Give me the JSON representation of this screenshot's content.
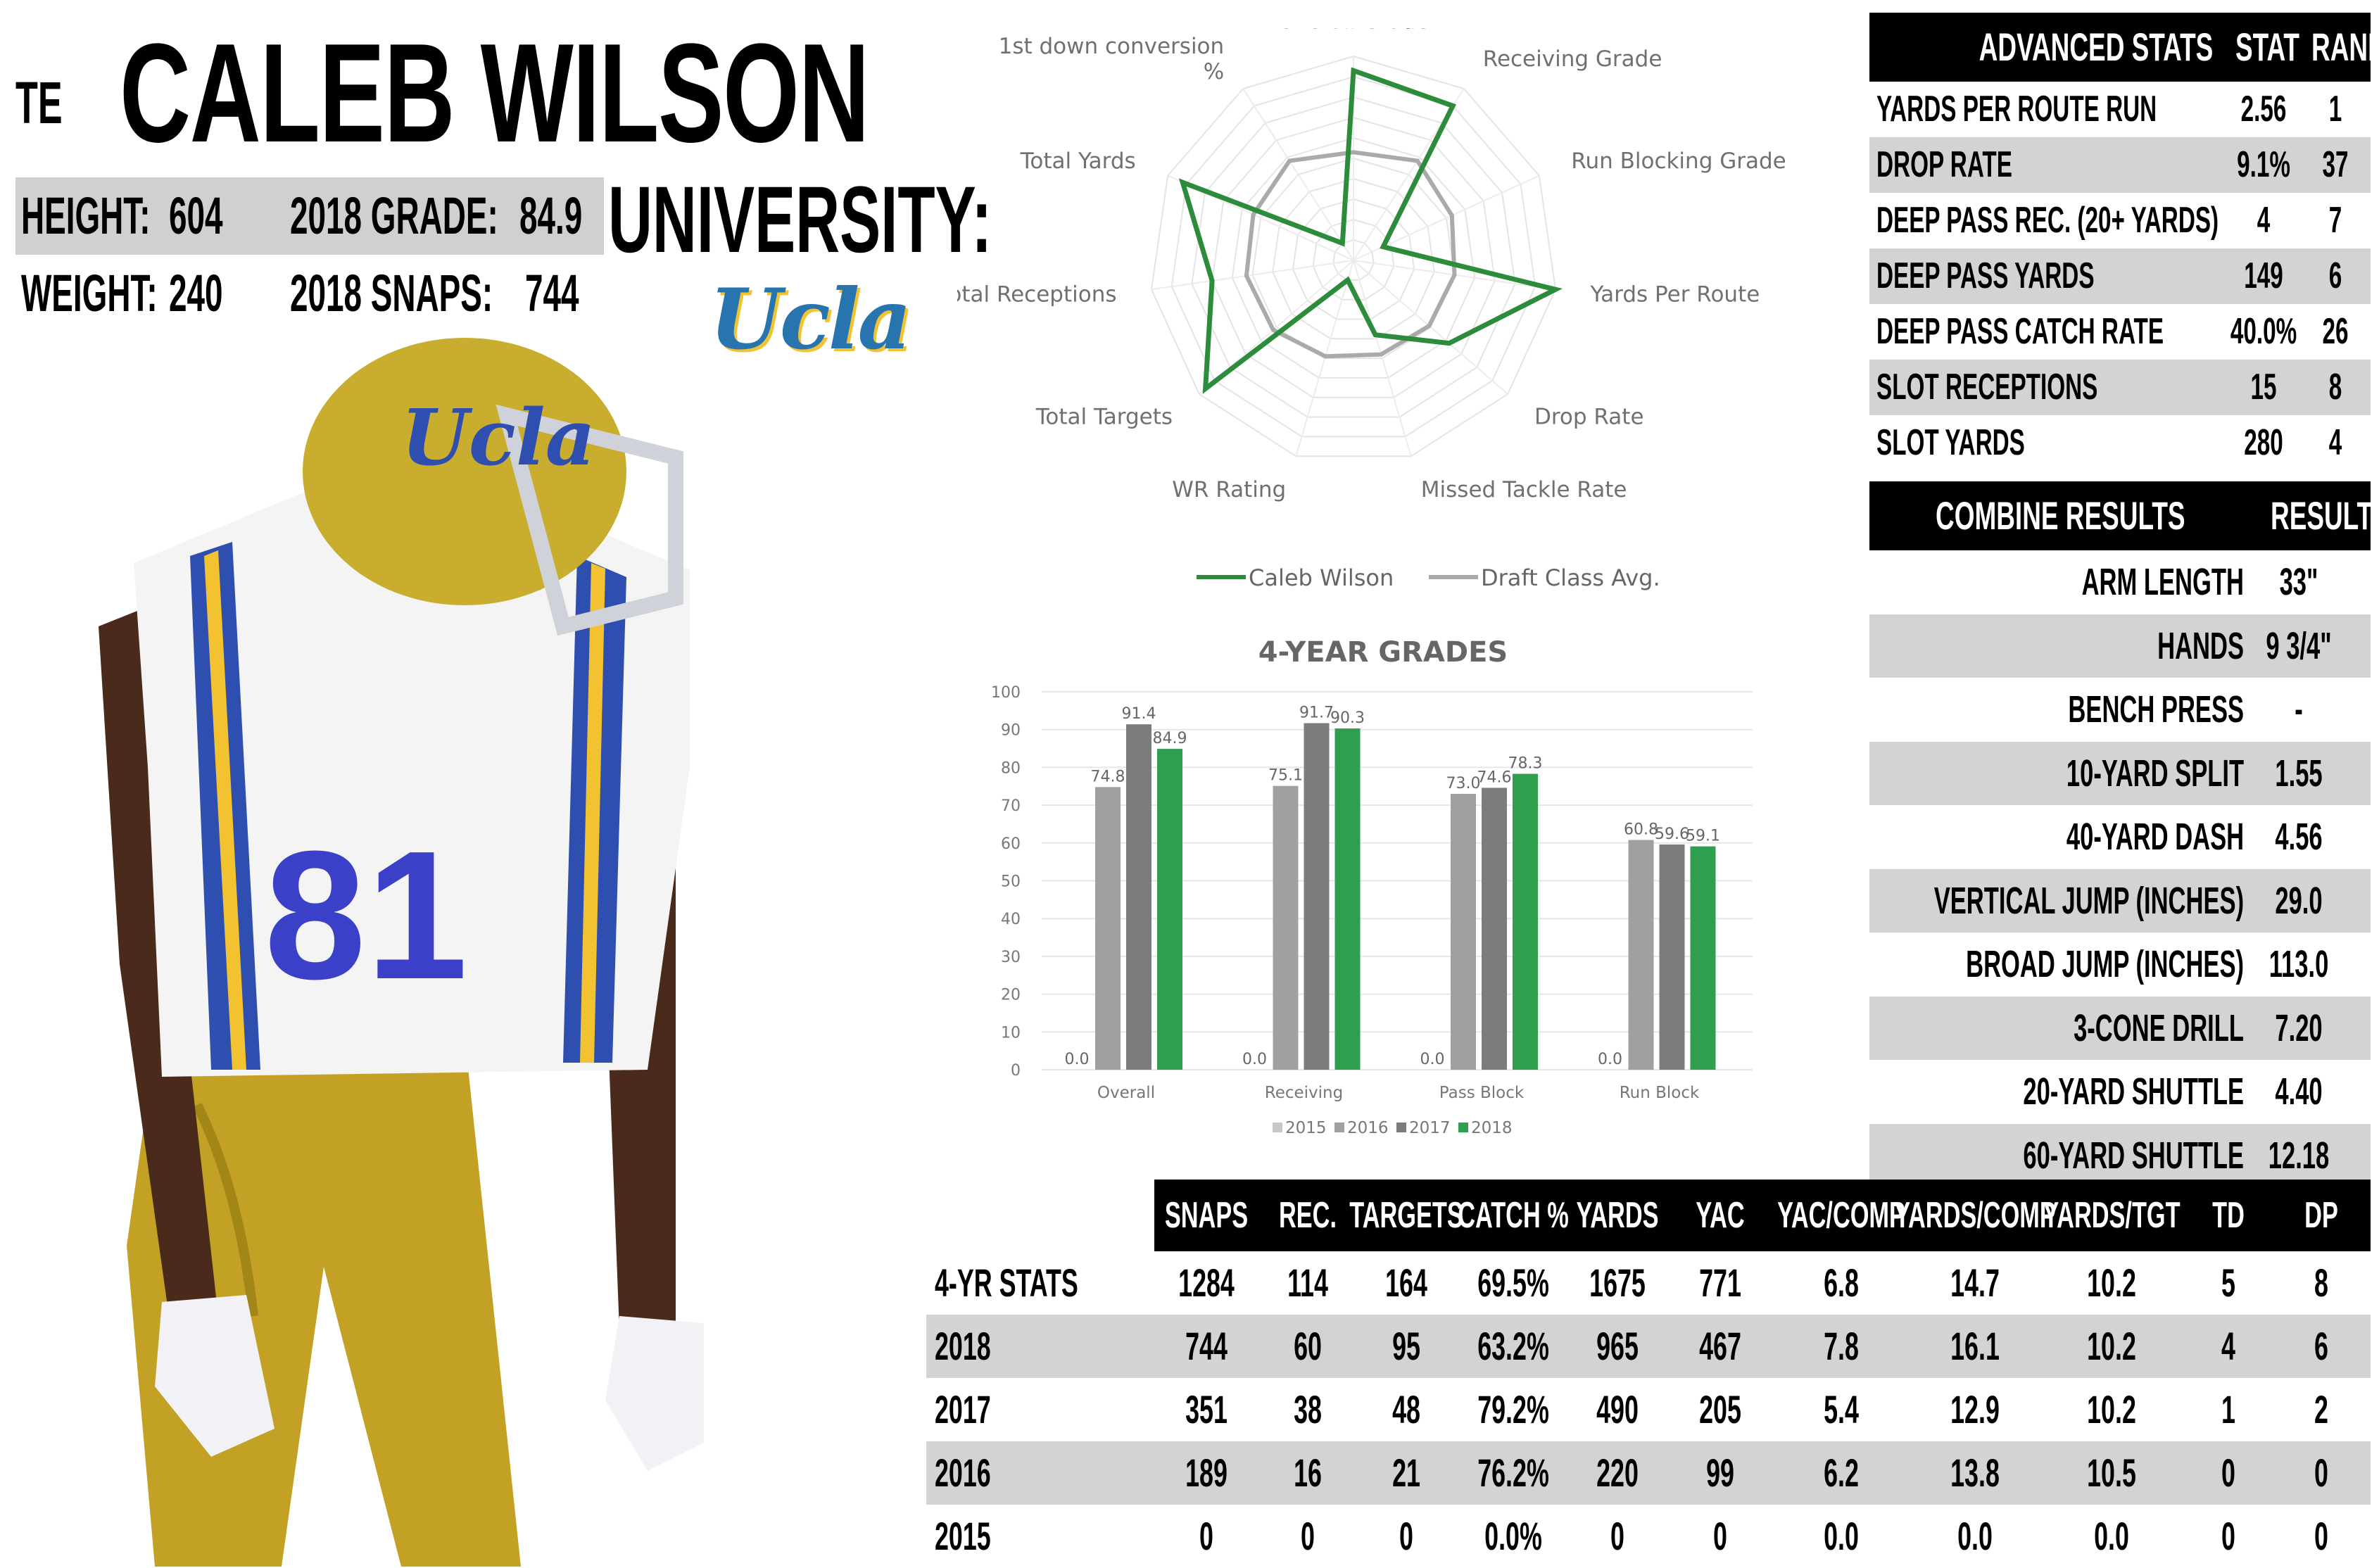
{
  "header": {
    "position": "TE",
    "name": "CALEB WILSON",
    "height_label": "HEIGHT:",
    "height_value": "604",
    "grade_label": "2018 GRADE:",
    "grade_value": "84.9",
    "weight_label": "WEIGHT:",
    "weight_value": "240",
    "snaps_label": "2018 SNAPS:",
    "snaps_value": "744",
    "university_label": "UNIVERSITY:",
    "university_logo_text": "Ucla"
  },
  "colors": {
    "player": "#2c8c3c",
    "avg": "#aaaaaa",
    "bar2015": "#c8c8c8",
    "bar2016": "#a0a0a0",
    "bar2017": "#7c7c7c",
    "bar2018": "#2e9e4f",
    "ucla_blue": "#2774ae",
    "ucla_gold": "#f2c230"
  },
  "chart_data": [
    {
      "type": "radar",
      "axes": [
        "Overall Grade",
        "Receiving Grade",
        "Run Blocking Grade",
        "Yards Per Route",
        "Drop Rate",
        "Missed Tackle Rate",
        "WR Rating",
        "Total Targets",
        "Total Receptions",
        "Total Yards",
        "1st down conversion %"
      ],
      "scale": [
        0,
        10
      ],
      "series": [
        {
          "name": "Caleb Wilson",
          "values": [
            9.3,
            9.0,
            1.6,
            10.0,
            6.2,
            3.8,
            1.0,
            9.6,
            7.0,
            9.2,
            1.0
          ]
        },
        {
          "name": "Draft Class Avg.",
          "values": [
            5.3,
            5.8,
            5.3,
            5.0,
            4.9,
            4.8,
            4.9,
            5.2,
            5.3,
            5.4,
            5.8
          ]
        }
      ],
      "legend": "bottom"
    },
    {
      "type": "bar",
      "title": "4-YEAR GRADES",
      "categories": [
        "Overall",
        "Receiving",
        "Pass Block",
        "Run Block"
      ],
      "series": [
        {
          "name": "2015",
          "values": [
            0.0,
            0.0,
            0.0,
            0.0
          ]
        },
        {
          "name": "2016",
          "values": [
            74.8,
            75.1,
            73.0,
            60.8
          ]
        },
        {
          "name": "2017",
          "values": [
            91.4,
            91.7,
            74.6,
            59.6
          ]
        },
        {
          "name": "2018",
          "values": [
            84.9,
            90.3,
            78.3,
            59.1
          ]
        }
      ],
      "ylim": [
        0,
        100
      ],
      "yticks": [
        "0",
        "10",
        "20",
        "30",
        "40",
        "50",
        "60",
        "70",
        "80",
        "90",
        "100"
      ],
      "grid": true,
      "legend": "bottom"
    }
  ],
  "advanced": {
    "title": "ADVANCED STATS",
    "col_stat": "STAT",
    "col_rank": "RANK",
    "rows": [
      {
        "label": "YARDS PER ROUTE RUN",
        "stat": "2.56",
        "rank": "1"
      },
      {
        "label": "DROP RATE",
        "stat": "9.1%",
        "rank": "37"
      },
      {
        "label": "DEEP PASS REC. (20+ YARDS)",
        "stat": "4",
        "rank": "7"
      },
      {
        "label": "DEEP PASS YARDS",
        "stat": "149",
        "rank": "6"
      },
      {
        "label": "DEEP PASS CATCH RATE",
        "stat": "40.0%",
        "rank": "26"
      },
      {
        "label": "SLOT RECEPTIONS",
        "stat": "15",
        "rank": "8"
      },
      {
        "label": "SLOT YARDS",
        "stat": "280",
        "rank": "4"
      }
    ]
  },
  "combine": {
    "title": "COMBINE RESULTS",
    "col_result": "RESULT",
    "rows": [
      {
        "label": "ARM LENGTH",
        "result": "33\""
      },
      {
        "label": "HANDS",
        "result": "9 3/4\""
      },
      {
        "label": "BENCH PRESS",
        "result": "-"
      },
      {
        "label": "10-YARD SPLIT",
        "result": "1.55"
      },
      {
        "label": "40-YARD DASH",
        "result": "4.56"
      },
      {
        "label": "VERTICAL JUMP (INCHES)",
        "result": "29.0"
      },
      {
        "label": "BROAD JUMP (INCHES)",
        "result": "113.0"
      },
      {
        "label": "3-CONE DRILL",
        "result": "7.20"
      },
      {
        "label": "20-YARD SHUTTLE",
        "result": "4.40"
      },
      {
        "label": "60-YARD SHUTTLE",
        "result": "12.18"
      }
    ]
  },
  "stats": {
    "columns": [
      "SNAPS",
      "REC.",
      "TARGETS",
      "CATCH %",
      "YARDS",
      "YAC",
      "YAC/COMP",
      "YARDS/COMP",
      "YARDS/TGT",
      "TD",
      "DP"
    ],
    "rows": [
      {
        "label": "4-YR STATS",
        "values": [
          "1284",
          "114",
          "164",
          "69.5%",
          "1675",
          "771",
          "6.8",
          "14.7",
          "10.2",
          "5",
          "8"
        ]
      },
      {
        "label": "2018",
        "values": [
          "744",
          "60",
          "95",
          "63.2%",
          "965",
          "467",
          "7.8",
          "16.1",
          "10.2",
          "4",
          "6"
        ]
      },
      {
        "label": "2017",
        "values": [
          "351",
          "38",
          "48",
          "79.2%",
          "490",
          "205",
          "5.4",
          "12.9",
          "10.2",
          "1",
          "2"
        ]
      },
      {
        "label": "2016",
        "values": [
          "189",
          "16",
          "21",
          "76.2%",
          "220",
          "99",
          "6.2",
          "13.8",
          "10.5",
          "0",
          "0"
        ]
      },
      {
        "label": "2015",
        "values": [
          "0",
          "0",
          "0",
          "0.0%",
          "0",
          "0",
          "0.0",
          "0.0",
          "0.0",
          "0",
          "0"
        ]
      }
    ]
  }
}
